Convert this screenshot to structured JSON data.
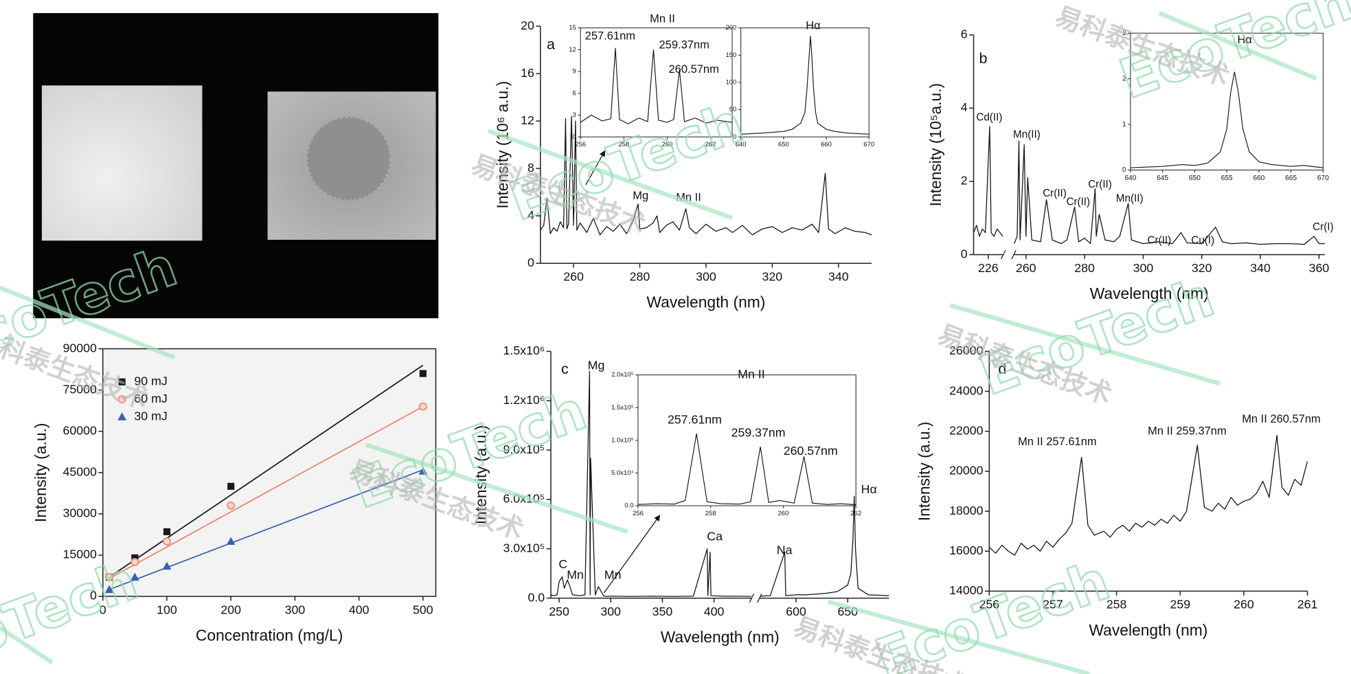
{
  "watermark": {
    "logo": "EcoTech",
    "text": "易科泰生态技术"
  },
  "chart_data": [
    {
      "type": "scatter",
      "x_label": "Concentration (mg/L)",
      "y_label": "Intensity (a.u.)",
      "xlim": [
        0,
        520
      ],
      "ylim": [
        0,
        90000
      ],
      "xticks": [
        0,
        100,
        200,
        300,
        400,
        500
      ],
      "yticks": [
        0,
        15000,
        30000,
        45000,
        60000,
        75000,
        90000
      ],
      "legend": "upper left",
      "x": [
        10,
        50,
        100,
        200,
        500
      ],
      "fit_x": [
        10,
        500
      ],
      "series": [
        {
          "name": "90 mJ",
          "color": "#1a1a1a",
          "marker": "square",
          "values": [
            7000,
            14000,
            23500,
            40000,
            81000
          ],
          "fit": [
            7000,
            84000
          ]
        },
        {
          "name": "60 mJ",
          "color": "#ef8468",
          "marker": "circle",
          "values": [
            7000,
            12500,
            20000,
            33000,
            69000
          ],
          "fit": [
            6500,
            69000
          ]
        },
        {
          "name": "30 mJ",
          "color": "#3b5fb4",
          "marker": "triangle",
          "values": [
            2500,
            7000,
            11000,
            20000,
            45500
          ],
          "fit": [
            2500,
            46000
          ]
        }
      ]
    },
    {
      "type": "line",
      "x_label": "Wavelength (nm)",
      "y_label": "Intensity (10⁶ a.u.)",
      "color": "#111111",
      "xlim": [
        250,
        350
      ],
      "ylim": [
        0,
        20
      ],
      "xticks": [
        260,
        280,
        300,
        320,
        340
      ],
      "yticks": [
        0,
        4,
        8,
        12,
        16,
        20
      ],
      "annotations": [
        "a",
        "Mg",
        "Mn II"
      ],
      "x": [
        250,
        251,
        252,
        253,
        254,
        255,
        256,
        257,
        257.6,
        258,
        258.5,
        259.4,
        260,
        260.6,
        261,
        262,
        264,
        266,
        268,
        270,
        272,
        274,
        276,
        278,
        279.5,
        280,
        282,
        284,
        285.2,
        286,
        288,
        290,
        292,
        293.9,
        295,
        297,
        300,
        303,
        306,
        308,
        311,
        314,
        317,
        320,
        323,
        326,
        329,
        332,
        334,
        336,
        337,
        339,
        342,
        345,
        348,
        350
      ],
      "values": [
        2.8,
        3.2,
        5.5,
        2.5,
        3.0,
        2.7,
        3.5,
        3.0,
        12.2,
        2.9,
        3.3,
        12.4,
        3.2,
        12.0,
        2.8,
        3.4,
        2.6,
        3.8,
        2.4,
        3.1,
        2.7,
        3.3,
        2.5,
        3.6,
        5.0,
        2.9,
        3.0,
        3.4,
        4.0,
        2.6,
        3.2,
        3.5,
        2.8,
        4.6,
        3.0,
        2.5,
        3.3,
        2.7,
        3.0,
        2.6,
        3.2,
        2.4,
        2.9,
        3.1,
        2.6,
        3.0,
        2.8,
        3.3,
        2.6,
        7.6,
        2.9,
        2.5,
        3.0,
        2.7,
        2.6,
        2.4
      ]
    },
    {
      "type": "line",
      "color": "#111111",
      "xlim": [
        256,
        263
      ],
      "ylim": [
        0,
        15
      ],
      "xticks": [
        256,
        258,
        260,
        262
      ],
      "yticks": [
        0,
        3,
        6,
        9,
        12,
        15
      ],
      "annotations": [
        "Mn II",
        "257.61nm",
        "259.37nm",
        "260.57nm"
      ],
      "x": [
        256,
        256.5,
        257,
        257.4,
        257.61,
        257.8,
        258.2,
        258.7,
        259.1,
        259.37,
        259.6,
        260,
        260.3,
        260.57,
        260.8,
        261.3,
        261.8,
        262.3,
        263
      ],
      "values": [
        2,
        3,
        2.2,
        2.5,
        12.2,
        2.4,
        1.8,
        2.6,
        2.1,
        12,
        2.3,
        2.0,
        2.4,
        9.2,
        2.1,
        2.6,
        1.9,
        2.3,
        2.0
      ]
    },
    {
      "type": "line",
      "color": "#111111",
      "xlim": [
        640,
        670
      ],
      "ylim": [
        0,
        200
      ],
      "xticks": [
        640,
        650,
        660,
        670
      ],
      "yticks": [
        0,
        50,
        100,
        150,
        200
      ],
      "annotations": [
        "Hα"
      ],
      "x": [
        640,
        645,
        650,
        652,
        654,
        655,
        655.5,
        656,
        656.3,
        656.6,
        657,
        657.5,
        658,
        660,
        662,
        665,
        670
      ],
      "values": [
        5,
        7,
        10,
        14,
        25,
        45,
        90,
        150,
        185,
        150,
        90,
        45,
        25,
        14,
        10,
        7,
        5
      ]
    },
    {
      "type": "line",
      "x_label": "Wavelength (nm)",
      "y_label": "Intensity (10⁵a.u.)",
      "color": "#111111",
      "xlim": [
        221,
        362
      ],
      "xbreak": [
        231,
        256
      ],
      "ylim": [
        0,
        6
      ],
      "xticks": [
        226,
        260,
        280,
        300,
        320,
        340,
        360
      ],
      "yticks": [
        0,
        2,
        4,
        6
      ],
      "annotations": [
        "b",
        "Cd(II)",
        "Mn(II)",
        "Cr(II)",
        "Cr(II)",
        "Cr(II)",
        "Mn(II)",
        "Cr(II)",
        "Cu(I)",
        "Cr(I)"
      ],
      "x": [
        221,
        222,
        223,
        224,
        225,
        226.5,
        227,
        228,
        229,
        230,
        231,
        256,
        257,
        257.6,
        258,
        259.4,
        260,
        260.6,
        262,
        265,
        267,
        269,
        272,
        274,
        276.6,
        278,
        280,
        282,
        283.6,
        284,
        285,
        287,
        290,
        292,
        294.9,
        296,
        300,
        305,
        310,
        312.9,
        315,
        320,
        324.7,
        327,
        330,
        335,
        340,
        345,
        350,
        355,
        358.3,
        360,
        362
      ],
      "values": [
        0.6,
        0.8,
        0.5,
        0.7,
        0.6,
        3.5,
        0.6,
        0.5,
        0.7,
        0.6,
        0.5,
        0.3,
        0.5,
        3.1,
        0.4,
        3.0,
        0.5,
        2.1,
        0.4,
        0.35,
        1.5,
        0.4,
        0.3,
        0.4,
        1.3,
        0.35,
        0.45,
        0.3,
        1.8,
        0.5,
        1.1,
        0.4,
        0.35,
        0.5,
        1.4,
        0.4,
        0.3,
        0.35,
        0.3,
        0.6,
        0.32,
        0.3,
        0.75,
        0.35,
        0.3,
        0.32,
        0.28,
        0.3,
        0.3,
        0.28,
        0.5,
        0.3,
        0.3
      ]
    },
    {
      "type": "line",
      "color": "#111111",
      "xlim": [
        640,
        670
      ],
      "ylim": [
        0,
        3
      ],
      "xticks": [
        640,
        645,
        650,
        655,
        660,
        665,
        670
      ],
      "yticks": [
        0,
        1,
        2,
        3
      ],
      "annotations": [
        "Hα"
      ],
      "x": [
        640,
        645,
        648,
        650,
        652,
        654,
        655,
        655.6,
        656.2,
        656.8,
        657.5,
        658.5,
        660,
        662,
        665,
        667,
        670
      ],
      "values": [
        0.05,
        0.08,
        0.12,
        0.1,
        0.15,
        0.4,
        0.9,
        1.7,
        2.15,
        1.7,
        0.9,
        0.4,
        0.18,
        0.12,
        0.08,
        0.1,
        0.05
      ]
    },
    {
      "type": "line",
      "x_label": "Wavelength (nm)",
      "y_label": "Intensity (a.u.)",
      "color": "#111111",
      "xlim": [
        242,
        690
      ],
      "xbreak": [
        436,
        565
      ],
      "ylim": [
        0,
        1500000
      ],
      "xticks": [
        250,
        300,
        350,
        400,
        600,
        650
      ],
      "yticks": [
        {
          "value": 0,
          "label": "0.0"
        },
        {
          "value": 300000,
          "label": "3.0x10⁵"
        },
        {
          "value": 600000,
          "label": "6.0x10⁵"
        },
        {
          "value": 900000,
          "label": "9.0x10⁵"
        },
        {
          "value": 1200000,
          "label": "1.2x10⁶"
        },
        {
          "value": 1500000,
          "label": "1.5x10⁶"
        }
      ],
      "annotations": [
        "c",
        "Mg",
        "C",
        "Mn",
        "Mn",
        "Ca",
        "Na",
        "Hα"
      ],
      "x": [
        242,
        245,
        248,
        250,
        253,
        255,
        258,
        260,
        263,
        270,
        275,
        279.5,
        280,
        280.5,
        285,
        288,
        293,
        295,
        300,
        320,
        340,
        360,
        380,
        393.4,
        394,
        396.2,
        397,
        410,
        425,
        436,
        565,
        575,
        589,
        590,
        600,
        610,
        620,
        630,
        640,
        645,
        650,
        653,
        655,
        656.3,
        657.5,
        660,
        670,
        690
      ],
      "values": [
        20000,
        15000,
        20000,
        100000,
        130000,
        60000,
        110000,
        80000,
        20000,
        15000,
        20000,
        1380000,
        20000,
        850000,
        20000,
        70000,
        15000,
        10000,
        12000,
        10000,
        12000,
        10000,
        12000,
        300000,
        15000,
        280000,
        15000,
        12000,
        12000,
        10000,
        12000,
        15000,
        280000,
        15000,
        20000,
        20000,
        25000,
        30000,
        40000,
        60000,
        80000,
        150000,
        350000,
        620000,
        300000,
        60000,
        20000,
        15000
      ]
    },
    {
      "type": "line",
      "color": "#111111",
      "xlim": [
        256,
        262
      ],
      "ylim": [
        0,
        200000
      ],
      "xticks": [
        256,
        258,
        260,
        262
      ],
      "yticks": [
        {
          "value": 0,
          "label": "0.0"
        },
        {
          "value": 50000,
          "label": "5.0x10⁴"
        },
        {
          "value": 100000,
          "label": "1.0x10⁵"
        },
        {
          "value": 150000,
          "label": "1.5x10⁵"
        },
        {
          "value": 200000,
          "label": "2.0x10⁵"
        }
      ],
      "annotations": [
        "Mn II",
        "257.61nm",
        "259.37nm",
        "260.57nm"
      ],
      "x": [
        256,
        256.5,
        257,
        257.3,
        257.61,
        257.9,
        258.3,
        258.8,
        259.1,
        259.37,
        259.6,
        259.9,
        260.3,
        260.57,
        260.8,
        261.2,
        261.6,
        262
      ],
      "values": [
        2000,
        3000,
        2500,
        8000,
        110000,
        6000,
        3000,
        2500,
        6000,
        90000,
        5000,
        8000,
        4000,
        75000,
        4000,
        2000,
        3000,
        1500
      ]
    },
    {
      "type": "line",
      "x_label": "Wavelength (nm)",
      "y_label": "Intensity (a.u.)",
      "color": "#111111",
      "xlim": [
        256,
        261
      ],
      "ylim": [
        14000,
        26000
      ],
      "xticks": [
        256,
        257,
        258,
        259,
        260,
        261
      ],
      "yticks": [
        14000,
        16000,
        18000,
        20000,
        22000,
        24000,
        26000
      ],
      "annotations": [
        "d",
        "Mn II 257.61nm",
        "Mn II 259.37nm",
        "Mn II 260.57nm"
      ],
      "x": [
        256,
        256.1,
        256.2,
        256.3,
        256.4,
        256.5,
        256.6,
        256.7,
        256.8,
        256.9,
        257,
        257.1,
        257.2,
        257.3,
        257.45,
        257.55,
        257.65,
        257.8,
        257.9,
        258,
        258.1,
        258.2,
        258.3,
        258.4,
        258.5,
        258.6,
        258.7,
        258.8,
        258.9,
        259,
        259.1,
        259.27,
        259.38,
        259.5,
        259.6,
        259.7,
        259.8,
        259.9,
        260,
        260.1,
        260.2,
        260.3,
        260.4,
        260.52,
        260.6,
        260.7,
        260.8,
        260.9,
        261
      ],
      "values": [
        16200,
        15900,
        16300,
        16000,
        15800,
        16400,
        16100,
        16300,
        16000,
        16500,
        16200,
        16600,
        16900,
        17400,
        20700,
        17300,
        16800,
        17000,
        16700,
        17100,
        17300,
        17000,
        17400,
        17200,
        17500,
        17300,
        17600,
        17400,
        17800,
        17500,
        18000,
        21300,
        18200,
        18000,
        18400,
        18100,
        18700,
        18300,
        18500,
        18600,
        18900,
        19500,
        18700,
        21800,
        19200,
        18800,
        19600,
        19300,
        20500
      ]
    }
  ]
}
